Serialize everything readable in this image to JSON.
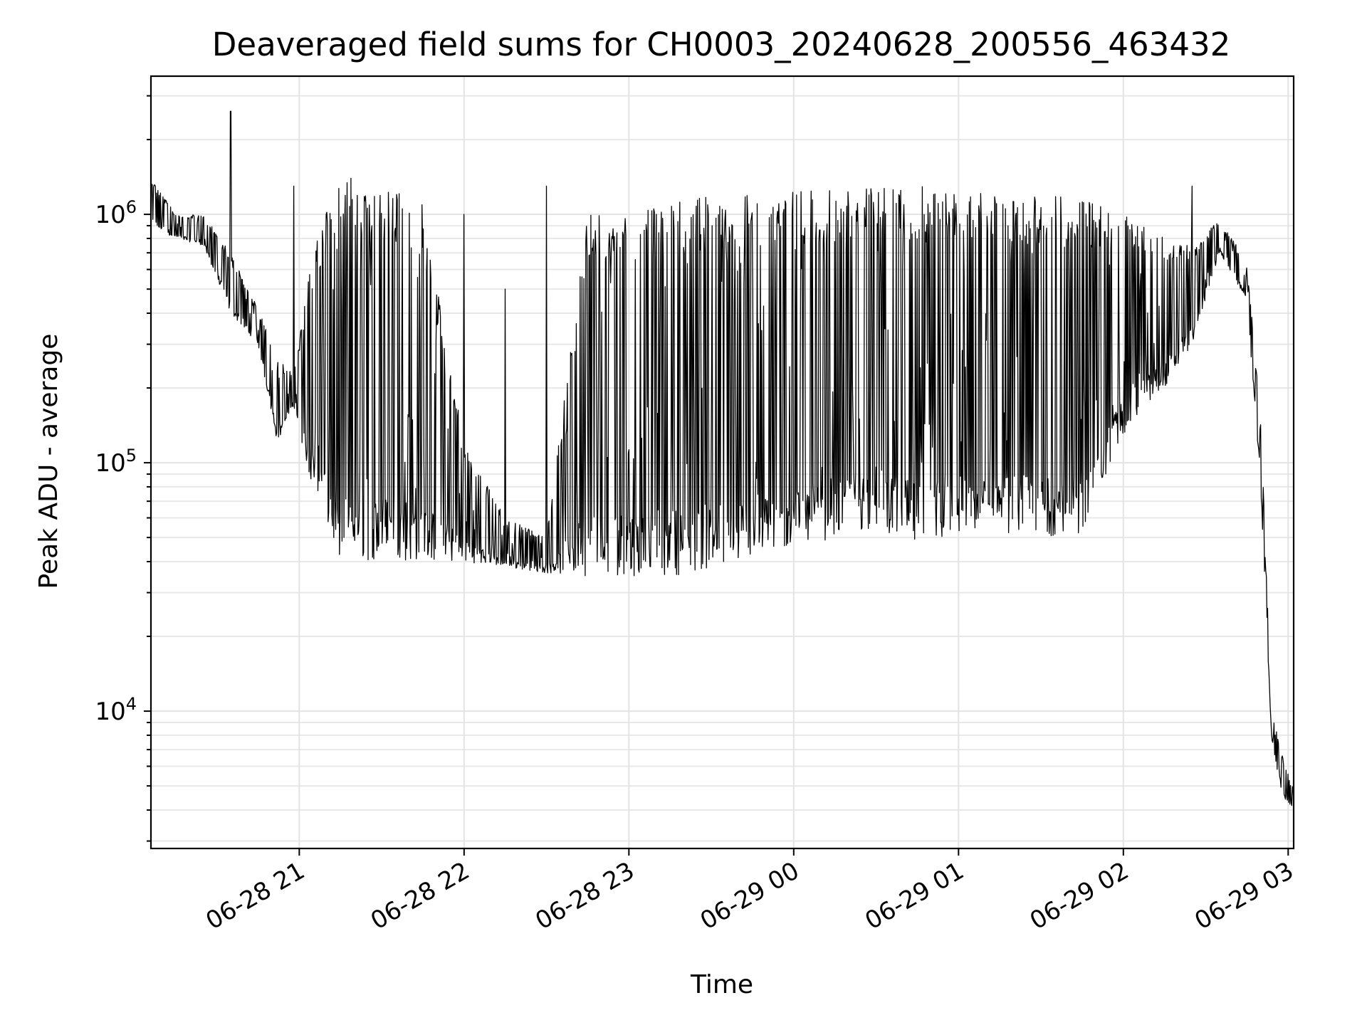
{
  "chart_data": {
    "type": "line",
    "title": "Deaveraged field sums for CH0003_20240628_200556_463432",
    "xlabel": "Time",
    "ylabel": "Peak ADU - average",
    "yscale": "log",
    "ylim": [
      2800,
      3600000
    ],
    "xlim": [
      "2024-06-28 20:06",
      "2024-06-29 03:02"
    ],
    "grid": true,
    "x_tick_labels": [
      "06-28 21",
      "06-28 22",
      "06-28 23",
      "06-29 00",
      "06-29 01",
      "06-29 02",
      "06-29 03"
    ],
    "x_ticks": [
      "2024-06-28 21:00",
      "2024-06-28 22:00",
      "2024-06-28 23:00",
      "2024-06-29 00:00",
      "2024-06-29 01:00",
      "2024-06-29 02:00",
      "2024-06-29 03:00"
    ],
    "y_tick_labels": [
      {
        "value": 10000,
        "base": "10",
        "exp": "4"
      },
      {
        "value": 100000,
        "base": "10",
        "exp": "5"
      },
      {
        "value": 1000000,
        "base": "10",
        "exp": "6"
      }
    ],
    "series_color": "#000000",
    "envelope": [
      {
        "x": "2024-06-28 20:06",
        "low": 900000,
        "high": 1400000,
        "spike": 0
      },
      {
        "x": "2024-06-28 20:15",
        "low": 800000,
        "high": 1000000,
        "spike": 0
      },
      {
        "x": "2024-06-28 20:25",
        "low": 750000,
        "high": 1000000,
        "spike": 0
      },
      {
        "x": "2024-06-28 20:35",
        "low": 400000,
        "high": 700000,
        "spike": 2600000
      },
      {
        "x": "2024-06-28 20:45",
        "low": 300000,
        "high": 420000,
        "spike": 0
      },
      {
        "x": "2024-06-28 20:52",
        "low": 120000,
        "high": 260000,
        "spike": 0
      },
      {
        "x": "2024-06-28 20:58",
        "low": 170000,
        "high": 230000,
        "spike": 1300000
      },
      {
        "x": "2024-06-28 21:05",
        "low": 75000,
        "high": 700000,
        "spike": 0
      },
      {
        "x": "2024-06-28 21:15",
        "low": 40000,
        "high": 1500000,
        "spike": 0
      },
      {
        "x": "2024-06-28 21:30",
        "low": 40000,
        "high": 1300000,
        "spike": 0
      },
      {
        "x": "2024-06-28 21:45",
        "low": 40000,
        "high": 1100000,
        "spike": 0
      },
      {
        "x": "2024-06-28 22:00",
        "low": 40000,
        "high": 120000,
        "spike": 1000000
      },
      {
        "x": "2024-06-28 22:15",
        "low": 38000,
        "high": 60000,
        "spike": 500000
      },
      {
        "x": "2024-06-28 22:30",
        "low": 36000,
        "high": 50000,
        "spike": 1300000
      },
      {
        "x": "2024-06-28 22:45",
        "low": 35000,
        "high": 1000000,
        "spike": 0
      },
      {
        "x": "2024-06-28 23:00",
        "low": 35000,
        "high": 1000000,
        "spike": 0
      },
      {
        "x": "2024-06-28 23:15",
        "low": 35000,
        "high": 1100000,
        "spike": 0
      },
      {
        "x": "2024-06-28 23:30",
        "low": 37000,
        "high": 1200000,
        "spike": 0
      },
      {
        "x": "2024-06-28 23:45",
        "low": 40000,
        "high": 1200000,
        "spike": 0
      },
      {
        "x": "2024-06-29 00:00",
        "low": 45000,
        "high": 1250000,
        "spike": 0
      },
      {
        "x": "2024-06-29 00:15",
        "low": 50000,
        "high": 1250000,
        "spike": 0
      },
      {
        "x": "2024-06-29 00:30",
        "low": 55000,
        "high": 1300000,
        "spike": 0
      },
      {
        "x": "2024-06-29 00:45",
        "low": 45000,
        "high": 1300000,
        "spike": 0
      },
      {
        "x": "2024-06-29 01:00",
        "low": 50000,
        "high": 1250000,
        "spike": 0
      },
      {
        "x": "2024-06-29 01:15",
        "low": 52000,
        "high": 1200000,
        "spike": 0
      },
      {
        "x": "2024-06-29 01:30",
        "low": 50000,
        "high": 1200000,
        "spike": 0
      },
      {
        "x": "2024-06-29 01:45",
        "low": 50000,
        "high": 1150000,
        "spike": 0
      },
      {
        "x": "2024-06-29 02:00",
        "low": 130000,
        "high": 1000000,
        "spike": 0
      },
      {
        "x": "2024-06-29 02:15",
        "low": 200000,
        "high": 800000,
        "spike": 0
      },
      {
        "x": "2024-06-29 02:25",
        "low": 300000,
        "high": 750000,
        "spike": 1300000
      },
      {
        "x": "2024-06-29 02:35",
        "low": 700000,
        "high": 950000,
        "spike": 0
      },
      {
        "x": "2024-06-29 02:45",
        "low": 450000,
        "high": 650000,
        "spike": 0
      },
      {
        "x": "2024-06-29 02:50",
        "low": 80000,
        "high": 150000,
        "spike": 0
      },
      {
        "x": "2024-06-29 02:54",
        "low": 7500,
        "high": 10000,
        "spike": 0
      },
      {
        "x": "2024-06-29 02:58",
        "low": 4500,
        "high": 6500,
        "spike": 0
      },
      {
        "x": "2024-06-29 03:02",
        "low": 4000,
        "high": 4800,
        "spike": 0
      }
    ]
  }
}
